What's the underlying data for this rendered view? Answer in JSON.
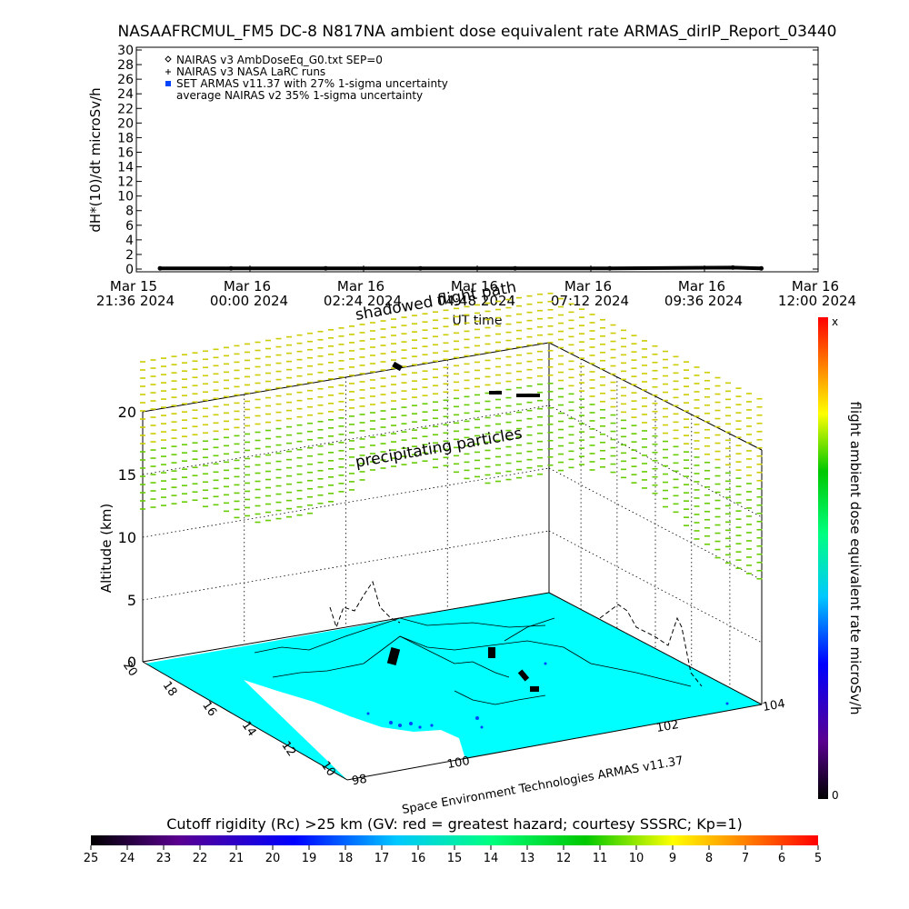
{
  "title": "NASAAFRCMUL_FM5 DC-8   N817NA ambient dose equivalent rate ARMAS_dirIP_Report_03440",
  "chart_data": [
    {
      "type": "line",
      "ylabel": "dH*(10)/dt microSv/h",
      "xlabel": "UT time",
      "ylim": [
        0,
        30
      ],
      "y_ticks": [
        "0",
        "2",
        "4",
        "6",
        "8",
        "10",
        "12",
        "14",
        "16",
        "18",
        "20",
        "22",
        "24",
        "26",
        "28",
        "30"
      ],
      "x_ticks": [
        {
          "top": "Mar 15",
          "bottom": "21:36 2024"
        },
        {
          "top": "Mar 16",
          "bottom": "00:00 2024"
        },
        {
          "top": "Mar 16",
          "bottom": "02:24 2024"
        },
        {
          "top": "Mar 16",
          "bottom": "04:48 2024"
        },
        {
          "top": "Mar 16",
          "bottom": "07:12 2024"
        },
        {
          "top": "Mar 16",
          "bottom": "09:36 2024"
        },
        {
          "top": "Mar 16",
          "bottom": "12:00 2024"
        }
      ],
      "x_range_hours": [
        0,
        14.4
      ],
      "legend": [
        {
          "symbol": "diamond",
          "label": "NAIRAS v3 AmbDoseEq_G0.txt SEP=0"
        },
        {
          "symbol": "plus",
          "label": "NAIRAS v3 NASA LaRC runs"
        },
        {
          "symbol": "blue-square",
          "label": "SET ARMAS v11.37 with 27% 1-sigma uncertainty"
        },
        {
          "symbol": "none",
          "label": "average NAIRAS v2 35% 1-sigma uncertainty"
        }
      ],
      "legend_position": "top-left",
      "series": [
        {
          "x": [
            0.5,
            2,
            4,
            6,
            8,
            10,
            12.6,
            13.2
          ],
          "y": [
            0.1,
            0.1,
            0.1,
            0.1,
            0.1,
            0.1,
            0.2,
            0.1
          ]
        }
      ]
    },
    {
      "type": "3d-map",
      "zlabel": "Altitude (km)",
      "z_ticks": [
        "0",
        "5",
        "10",
        "15",
        "20"
      ],
      "lat_ticks": [
        "20",
        "18",
        "16",
        "14",
        "12",
        "10"
      ],
      "lon_ticks": [
        "98",
        "100",
        "102",
        "104"
      ],
      "annotations": [
        "shadowed flight path",
        "precipitating particles",
        "Space Environment Technologies ARMAS v11.37"
      ],
      "vertical_colorbar": {
        "label": "flight ambient dose equivalent rate microSv/h",
        "max_label": "x",
        "min_label": "0"
      },
      "horizontal_colorbar": {
        "title": "Cutoff rigidity (Rc) >25 km (GV: red = greatest hazard; courtesy SSSRC; Kp=1)",
        "ticks": [
          "25",
          "24",
          "23",
          "22",
          "21",
          "20",
          "19",
          "18",
          "17",
          "16",
          "15",
          "14",
          "13",
          "12",
          "11",
          "10",
          "9",
          "8",
          "7",
          "6",
          "5"
        ]
      }
    }
  ],
  "colors": {
    "land": "#00ffff",
    "particles_green": "#66cc00",
    "particles_yellow": "#cccc00",
    "axis": "#000000"
  }
}
